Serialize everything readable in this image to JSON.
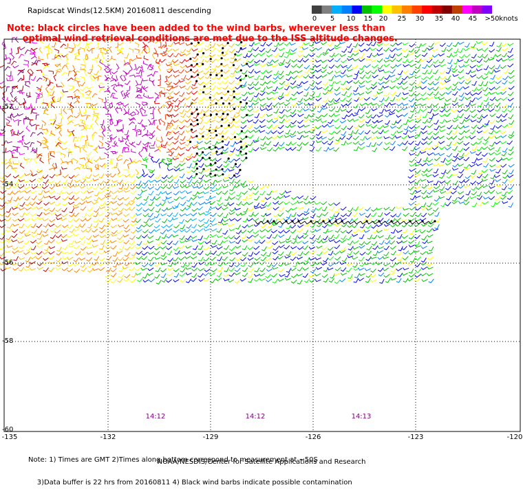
{
  "title": "Rapidscat Winds(12.5KM) 20160811 descending",
  "note": "Note: black circles have been added to the wind barbs, wherever less than\n     optimal wind retrieval conditions are met due to the ISS altitude changes.",
  "colorbar": {
    "units": "knots",
    "labels": [
      "0",
      "5",
      "10",
      "15",
      "20",
      "25",
      "30",
      "35",
      "40",
      "45",
      ">50"
    ],
    "colors": [
      "#404040",
      "#808080",
      "#00b0ff",
      "#0080ff",
      "#0000ff",
      "#00c000",
      "#00ff00",
      "#ffff00",
      "#ffc000",
      "#ff8000",
      "#ff4000",
      "#ff0000",
      "#c00000",
      "#800000",
      "#c04000",
      "#ff00ff",
      "#c000c0",
      "#8000ff"
    ]
  },
  "map": {
    "lat_labels": [
      "-52",
      "-54",
      "-56",
      "-58",
      "-60"
    ],
    "lon_labels": [
      "-135",
      "-132",
      "-129",
      "-126",
      "-123",
      "-120"
    ],
    "lat_range": [
      -60,
      -50.3
    ],
    "lon_range": [
      -135,
      -120
    ],
    "grid": true
  },
  "times": [
    "14:12",
    "14:12",
    "14:13"
  ],
  "footer": {
    "line1": "Note: 1) Times are GMT 2)Times along bottom correspond to measurement at ~50S",
    "line2": "    3)Data buffer is 22 hrs from 20160811 4) Black wind barbs indicate possible contamination",
    "credit": "NOAA/NESDIS/Center for Satellite Applications and Research"
  }
}
